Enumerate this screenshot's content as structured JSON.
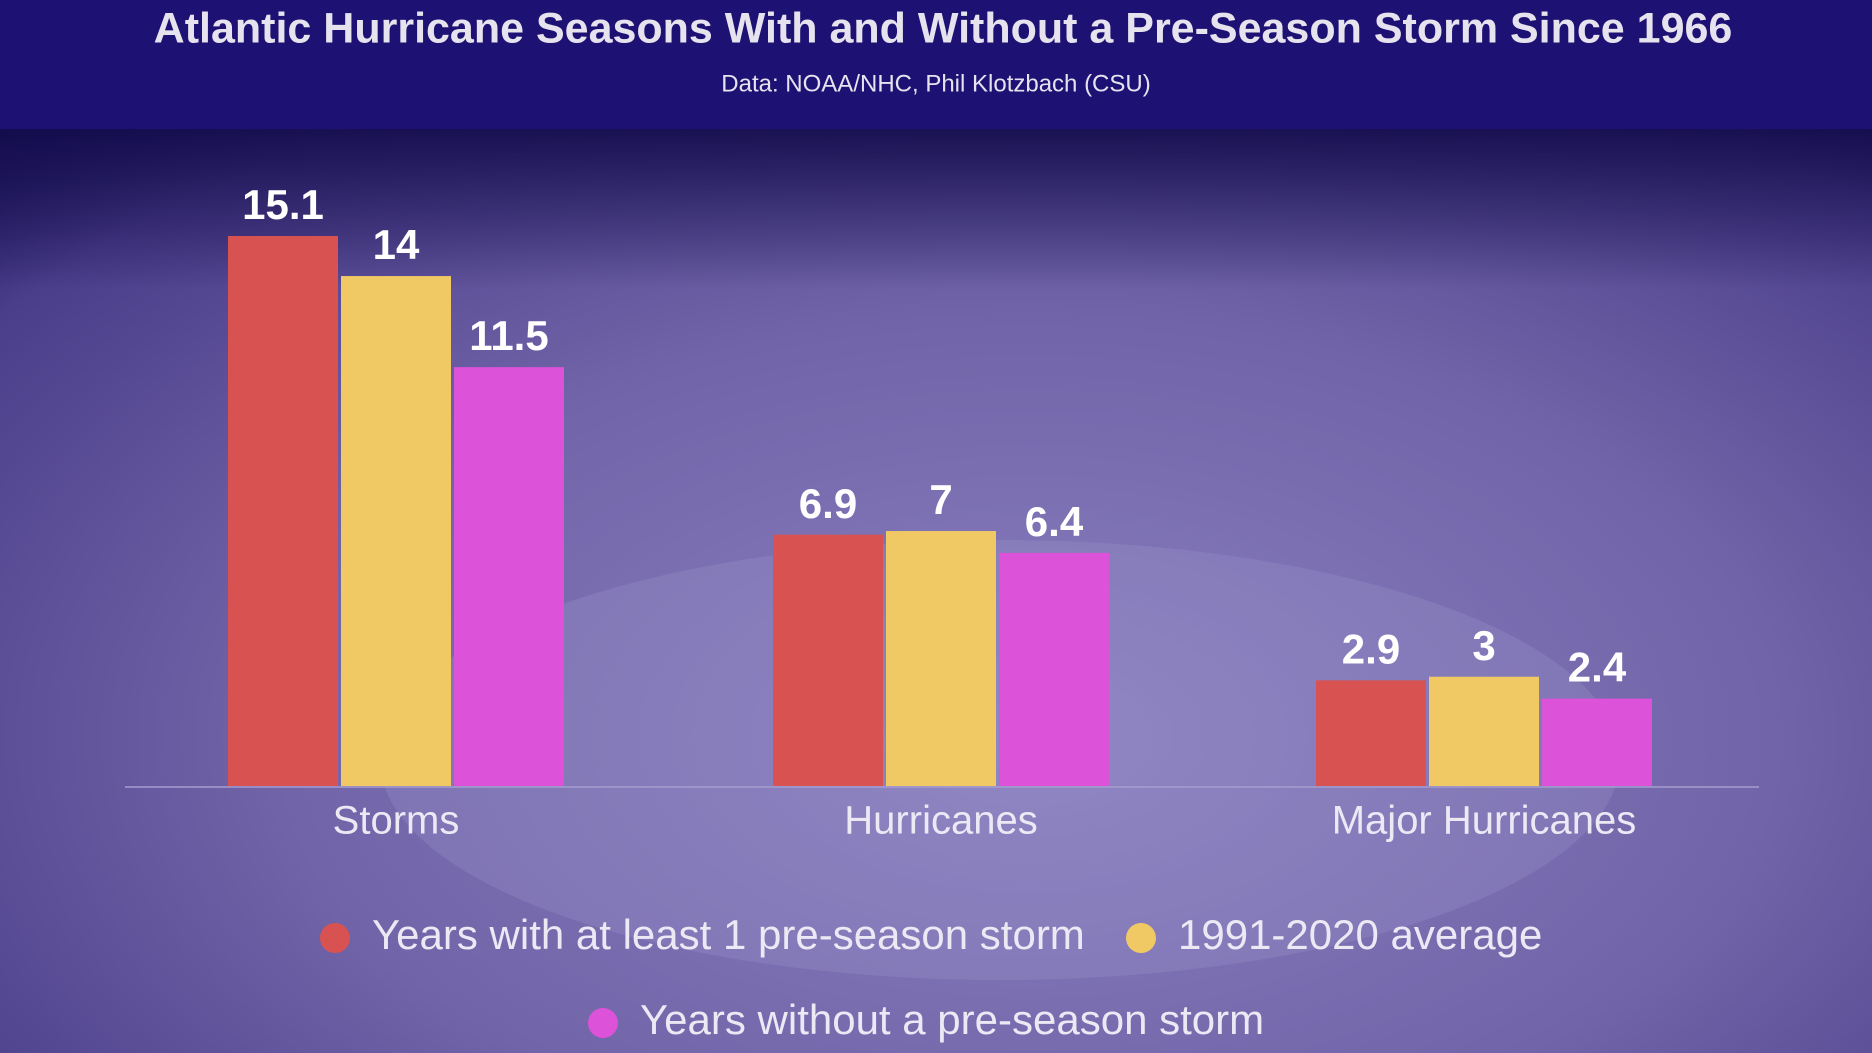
{
  "chart_data": {
    "type": "bar",
    "title": "Atlantic Hurricane Seasons With and Without a Pre-Season Storm Since 1966",
    "subtitle": "Data: NOAA/NHC, Phil Klotzbach (CSU)",
    "categories": [
      "Storms",
      "Hurricanes",
      "Major Hurricanes"
    ],
    "series": [
      {
        "name": "Years with at least 1 pre-season storm",
        "color": "#d95252",
        "values": [
          15.1,
          6.9,
          2.9
        ]
      },
      {
        "name": "1991-2020 average",
        "color": "#f0c965",
        "values": [
          14,
          7,
          3
        ]
      },
      {
        "name": "Years without a pre-season storm",
        "color": "#dc52d8",
        "values": [
          11.5,
          6.4,
          2.4
        ]
      }
    ]
  }
}
